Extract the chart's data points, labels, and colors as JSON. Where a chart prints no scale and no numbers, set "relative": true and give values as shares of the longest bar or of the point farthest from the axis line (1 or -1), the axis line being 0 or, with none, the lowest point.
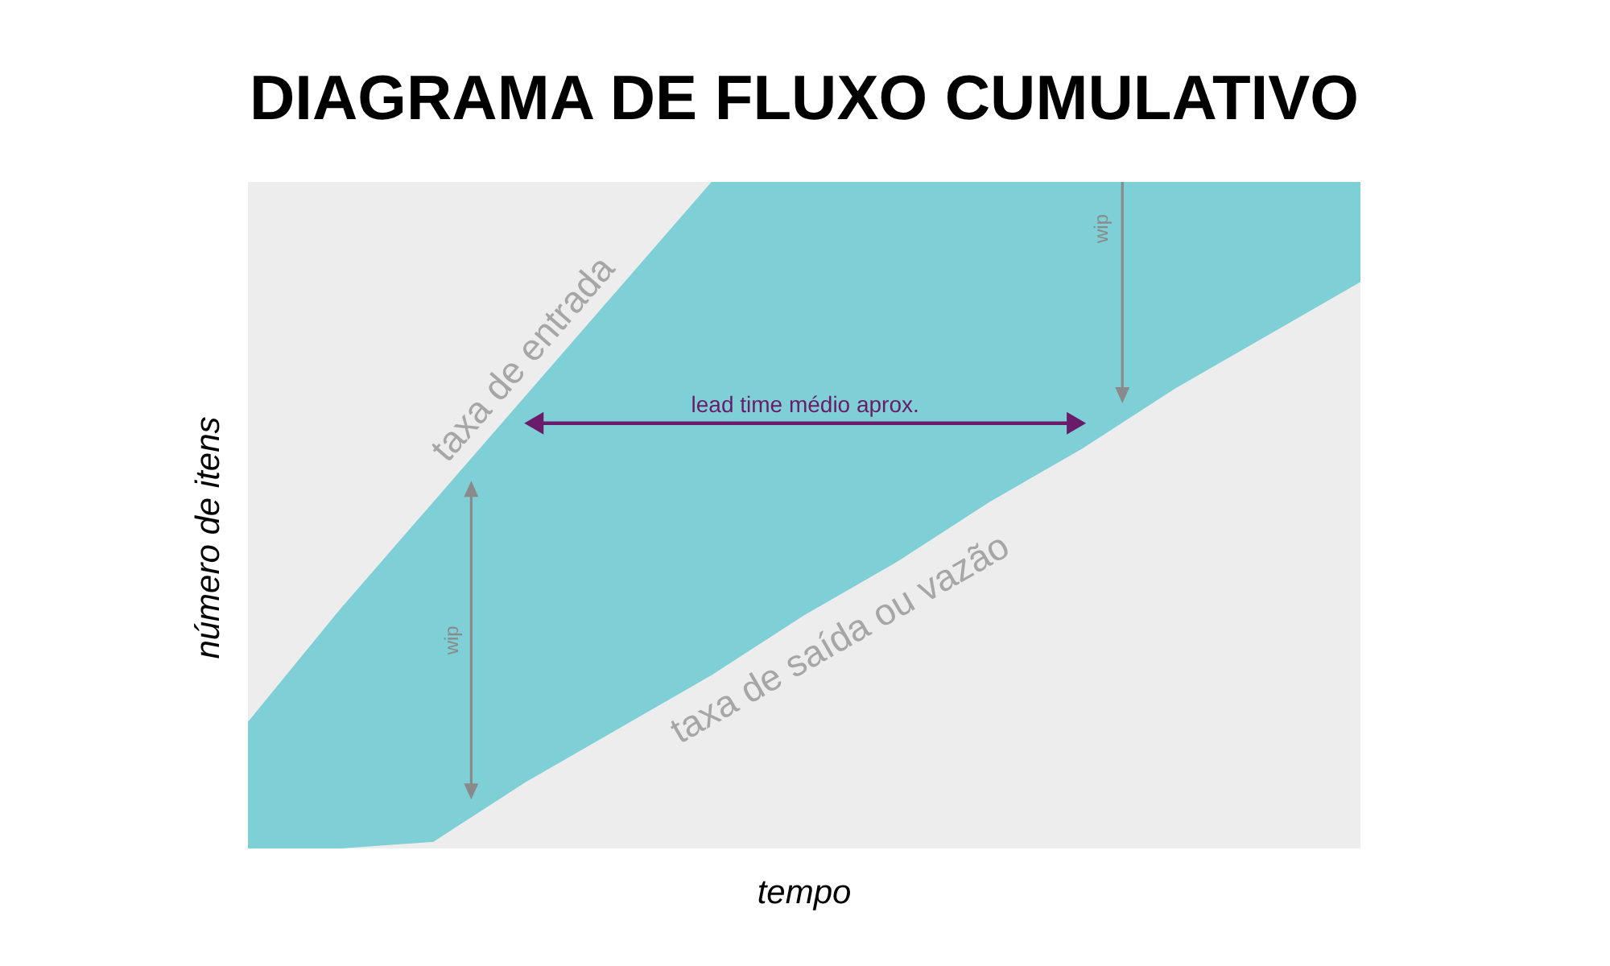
{
  "chart_data": {
    "type": "area",
    "title": "DIAGRAMA DE FLUXO CUMULATIVO",
    "xlabel": "tempo",
    "ylabel": "número de itens",
    "relative": true,
    "categories": [
      null,
      null,
      null,
      null,
      null,
      null,
      null,
      null,
      null,
      null,
      null,
      null,
      null
    ],
    "series": [
      {
        "color": "#7ecfd6",
        "values": [
          0.19,
          0.36,
          0.52,
          0.68,
          0.84,
          1,
          1,
          1,
          1,
          1,
          1,
          1,
          1
        ]
      },
      {
        "color": "#ededed",
        "values": [
          0,
          0,
          0.01,
          0.1,
          0.18,
          0.26,
          0.35,
          0.43,
          0.52,
          0.6,
          0.69,
          0.77,
          0.85
        ]
      }
    ],
    "annotations": [
      "taxa de entrada",
      "taxa de saída ou vazão",
      "lead time médio aprox.",
      "wip",
      "wip"
    ]
  }
}
